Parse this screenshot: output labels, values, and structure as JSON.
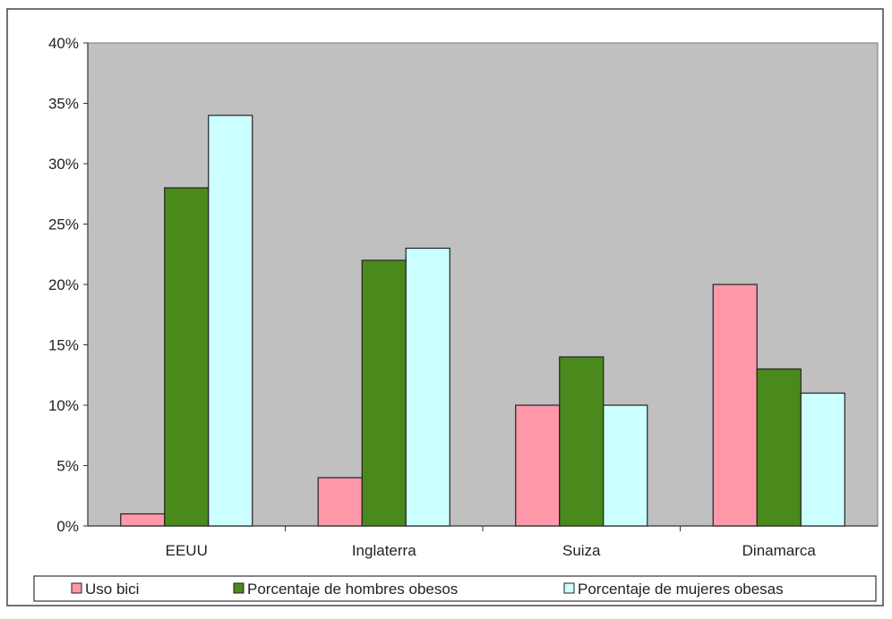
{
  "chart_data": {
    "type": "bar",
    "categories": [
      "EEUU",
      "Inglaterra",
      "Suiza",
      "Dinamarca"
    ],
    "series": [
      {
        "name": "Uso bici",
        "values": [
          1,
          4,
          10,
          20
        ],
        "color": "#ff99aa"
      },
      {
        "name": "Porcentaje de hombres obesos",
        "values": [
          28,
          22,
          14,
          13
        ],
        "color": "#4a8a1c"
      },
      {
        "name": "Porcentaje de mujeres obesas",
        "values": [
          34,
          23,
          10,
          11
        ],
        "color": "#ccffff"
      }
    ],
    "y_ticks": [
      "0%",
      "5%",
      "10%",
      "15%",
      "20%",
      "25%",
      "30%",
      "35%",
      "40%"
    ],
    "ylim": [
      0,
      40
    ],
    "grid": false,
    "legend_position": "bottom",
    "plot_background": "#c0c0c0"
  }
}
